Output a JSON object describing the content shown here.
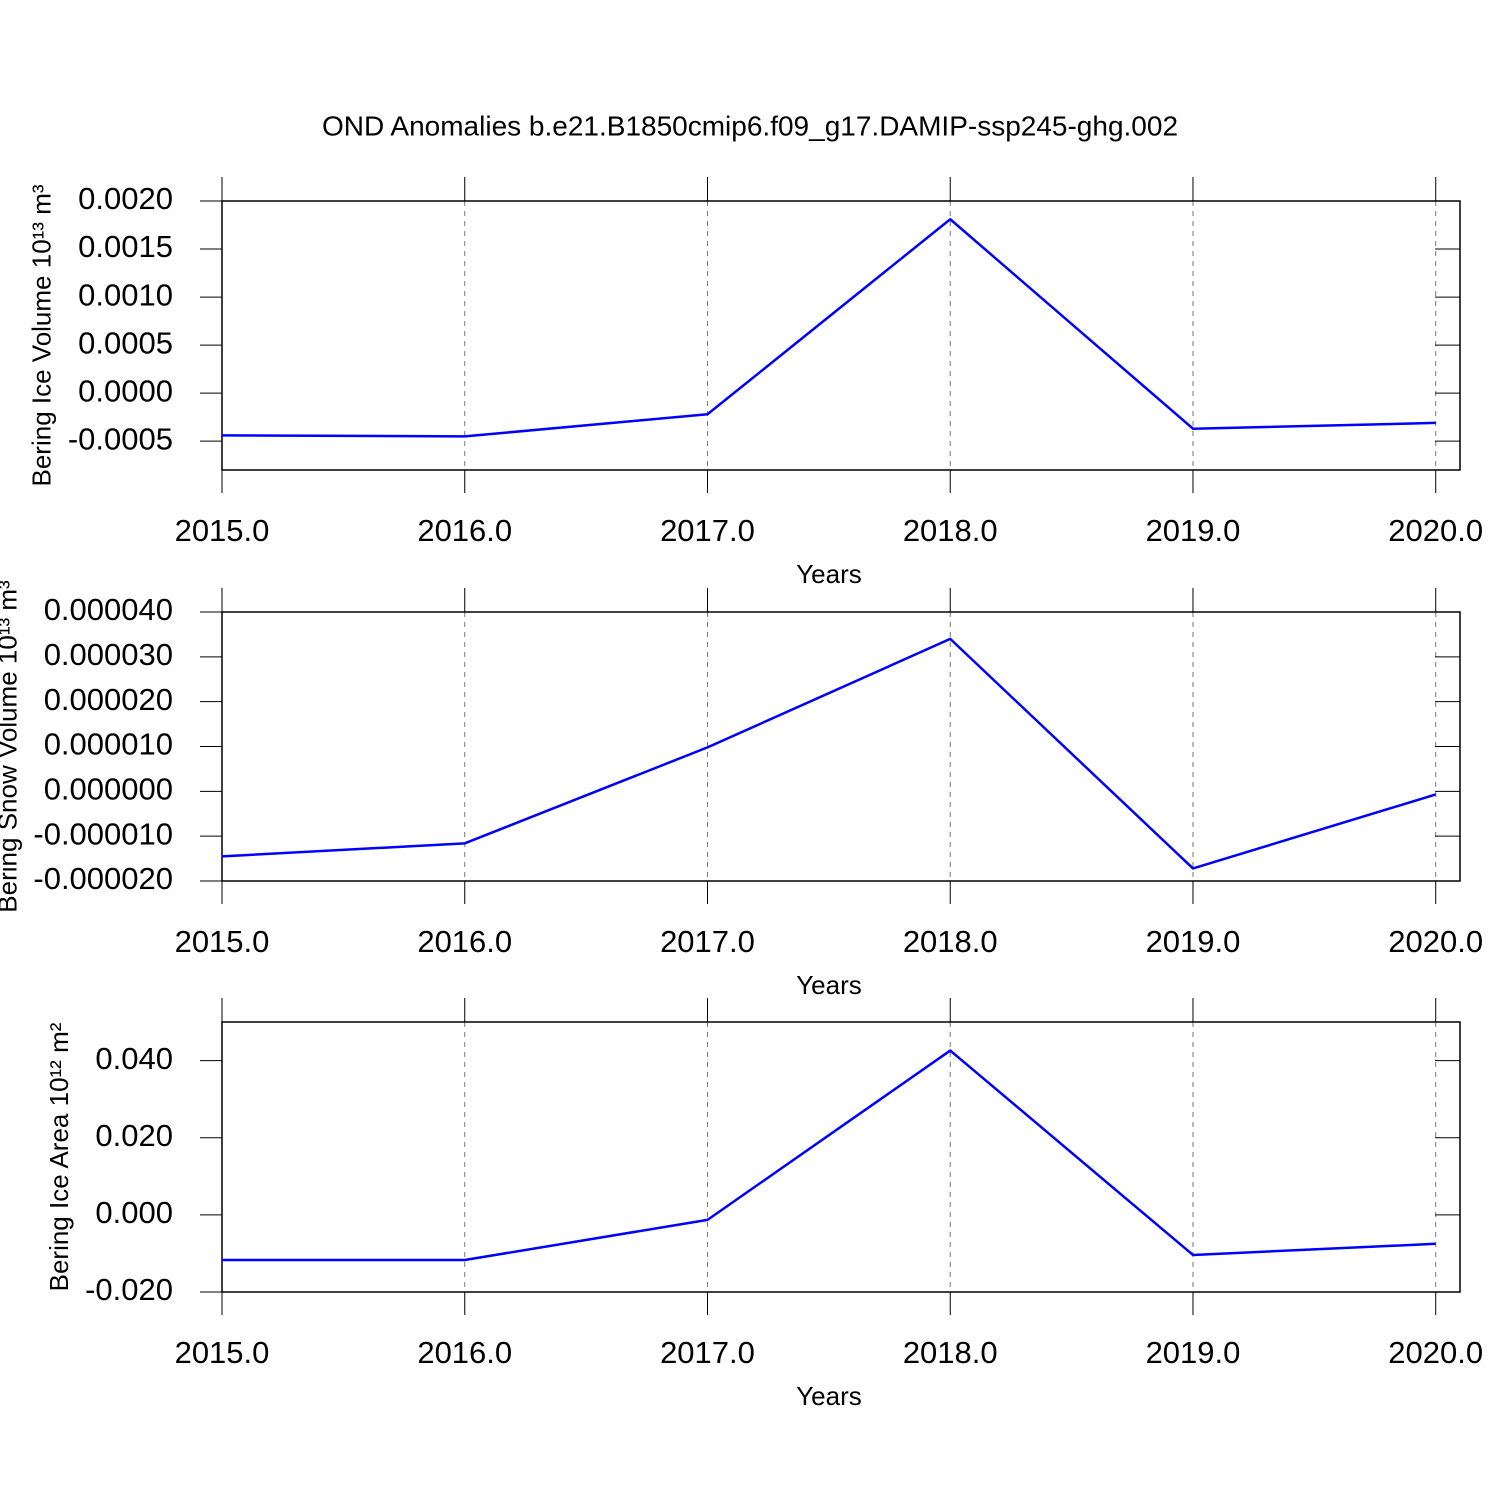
{
  "title": "OND Anomalies b.e21.B1850cmip6.f09_g17.DAMIP-ssp245-ghg.002",
  "chart_data": [
    {
      "type": "line",
      "xlabel": "Years",
      "ylabel": "Bering Ice Volume 10¹³ m³",
      "x": [
        2015,
        2016,
        2017,
        2018,
        2019,
        2020
      ],
      "series": [
        {
          "color": "#0000ff",
          "values": [
            -0.00044,
            -0.00045,
            -0.00022,
            0.00181,
            -0.00037,
            -0.00031
          ]
        }
      ],
      "xlim": [
        2015,
        2020.1
      ],
      "xticks": [
        {
          "value": 2015,
          "label": "2015.0"
        },
        {
          "value": 2016,
          "label": "2016.0"
        },
        {
          "value": 2017,
          "label": "2017.0"
        },
        {
          "value": 2018,
          "label": "2018.0"
        },
        {
          "value": 2019,
          "label": "2019.0"
        },
        {
          "value": 2020,
          "label": "2020.0"
        }
      ],
      "ylim": [
        -0.0008,
        0.002
      ],
      "yticks": [
        {
          "value": -0.0005,
          "label": "-0.0005"
        },
        {
          "value": 0,
          "label": "0.0000"
        },
        {
          "value": 0.0005,
          "label": "0.0005"
        },
        {
          "value": 0.001,
          "label": "0.0010"
        },
        {
          "value": 0.0015,
          "label": "0.0015"
        },
        {
          "value": 0.002,
          "label": "0.0020"
        }
      ],
      "xgrid": true
    },
    {
      "type": "line",
      "xlabel": "Years",
      "ylabel": "Bering Snow Volume 10¹³ m³",
      "x": [
        2015,
        2016,
        2017,
        2018,
        2019,
        2020
      ],
      "series": [
        {
          "color": "#0000ff",
          "values": [
            -1.45e-05,
            -1.16e-05,
            9.8e-06,
            3.4e-05,
            -1.72e-05,
            -7e-07
          ]
        }
      ],
      "xlim": [
        2015,
        2020.1
      ],
      "xticks": [
        {
          "value": 2015,
          "label": "2015.0"
        },
        {
          "value": 2016,
          "label": "2016.0"
        },
        {
          "value": 2017,
          "label": "2017.0"
        },
        {
          "value": 2018,
          "label": "2018.0"
        },
        {
          "value": 2019,
          "label": "2019.0"
        },
        {
          "value": 2020,
          "label": "2020.0"
        }
      ],
      "ylim": [
        -2e-05,
        4e-05
      ],
      "yticks": [
        {
          "value": -2e-05,
          "label": "-0.000020"
        },
        {
          "value": -1e-05,
          "label": "-0.000010"
        },
        {
          "value": 0,
          "label": "0.000000"
        },
        {
          "value": 1e-05,
          "label": "0.000010"
        },
        {
          "value": 2e-05,
          "label": "0.000020"
        },
        {
          "value": 3e-05,
          "label": "0.000030"
        },
        {
          "value": 4e-05,
          "label": "0.000040"
        }
      ],
      "xgrid": true
    },
    {
      "type": "line",
      "xlabel": "Years",
      "ylabel": "Bering Ice Area 10¹² m²",
      "x": [
        2015,
        2016,
        2017,
        2018,
        2019,
        2020
      ],
      "series": [
        {
          "color": "#0000ff",
          "values": [
            -0.0117,
            -0.0117,
            -0.0013,
            0.0426,
            -0.0104,
            -0.0075
          ]
        }
      ],
      "xlim": [
        2015,
        2020.1
      ],
      "xticks": [
        {
          "value": 2015,
          "label": "2015.0"
        },
        {
          "value": 2016,
          "label": "2016.0"
        },
        {
          "value": 2017,
          "label": "2017.0"
        },
        {
          "value": 2018,
          "label": "2018.0"
        },
        {
          "value": 2019,
          "label": "2019.0"
        },
        {
          "value": 2020,
          "label": "2020.0"
        }
      ],
      "ylim": [
        -0.02,
        0.05
      ],
      "yticks": [
        {
          "value": -0.02,
          "label": "-0.020"
        },
        {
          "value": 0,
          "label": "0.000"
        },
        {
          "value": 0.02,
          "label": "0.020"
        },
        {
          "value": 0.04,
          "label": "0.040"
        }
      ],
      "xgrid": true
    }
  ]
}
